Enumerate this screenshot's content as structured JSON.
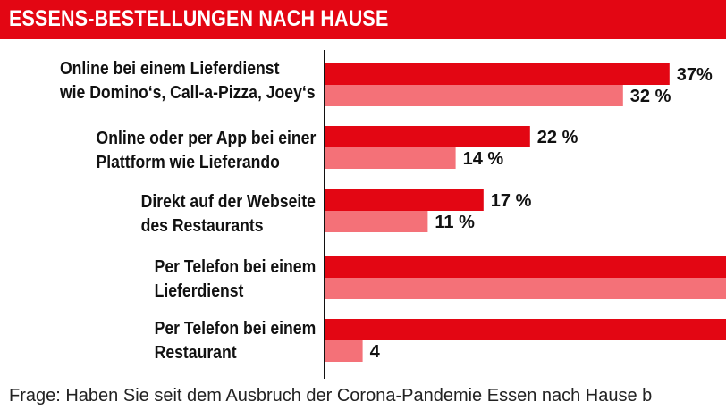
{
  "header": {
    "title": "ESSENS-BESTELLUNGEN NACH HAUSE"
  },
  "chart_data": {
    "type": "bar",
    "orientation": "horizontal",
    "categories": [
      [
        "Online bei einem Lieferdienst",
        "wie Domino‘s, Call-a-Pizza, Joey‘s"
      ],
      [
        "Online oder per App bei einer",
        "Plattform wie Lieferando"
      ],
      [
        "Direkt auf der Webseite",
        "des Restaurants"
      ],
      [
        "Per Telefon bei einem",
        "Lieferdienst"
      ],
      [
        "Per Telefon bei einem",
        "Restaurant"
      ]
    ],
    "series": [
      {
        "values": [
          37,
          22,
          17,
          null,
          null
        ],
        "labels": [
          "37%",
          "22 %",
          "17 %",
          "",
          ""
        ],
        "color": "#e30613"
      },
      {
        "values": [
          32,
          14,
          11,
          null,
          4
        ],
        "labels": [
          "32 %",
          "14 %",
          "11 %",
          "",
          "4"
        ],
        "color": "#f47178"
      }
    ],
    "xlim": [
      0,
      41
    ],
    "gridlines": false
  },
  "footnote": "Frage: Haben Sie seit dem Ausbruch der Corona-Pandemie Essen nach Hause b"
}
